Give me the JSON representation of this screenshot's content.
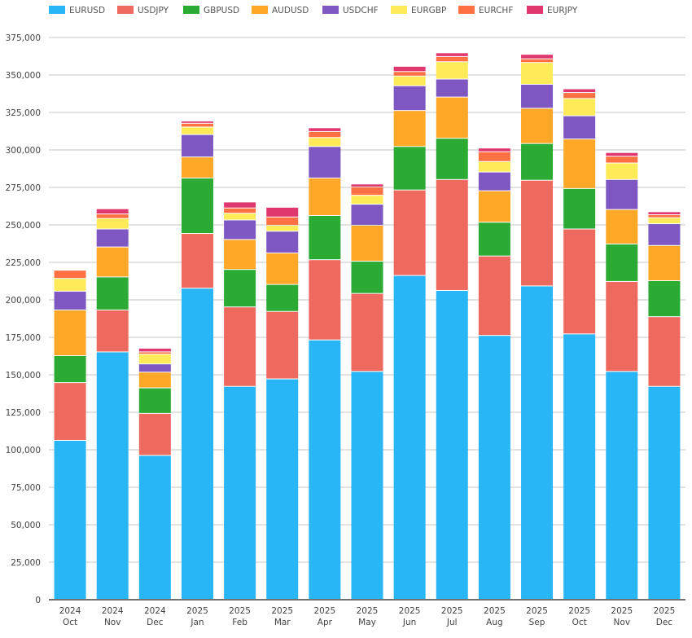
{
  "chart_data": {
    "type": "bar",
    "stacked": true,
    "title": "",
    "xlabel": "",
    "ylabel": "",
    "ylim": [
      0,
      375000
    ],
    "yticks": [
      0,
      25000,
      50000,
      75000,
      100000,
      125000,
      150000,
      175000,
      200000,
      225000,
      250000,
      275000,
      300000,
      325000,
      350000,
      375000
    ],
    "ytick_labels": [
      "0",
      "25,000",
      "50,000",
      "75,000",
      "100,000",
      "125,000",
      "150,000",
      "175,000",
      "200,000",
      "225,000",
      "250,000",
      "275,000",
      "300,000",
      "325,000",
      "350,000",
      "375,000"
    ],
    "grid": true,
    "legend_position": "top-left",
    "categories": [
      {
        "year": "2024",
        "month": "Oct"
      },
      {
        "year": "2024",
        "month": "Nov"
      },
      {
        "year": "2024",
        "month": "Dec"
      },
      {
        "year": "2025",
        "month": "Jan"
      },
      {
        "year": "2025",
        "month": "Feb"
      },
      {
        "year": "2025",
        "month": "Mar"
      },
      {
        "year": "2025",
        "month": "Apr"
      },
      {
        "year": "2025",
        "month": "May"
      },
      {
        "year": "2025",
        "month": "Jun"
      },
      {
        "year": "2025",
        "month": "Jul"
      },
      {
        "year": "2025",
        "month": "Aug"
      },
      {
        "year": "2025",
        "month": "Sep"
      },
      {
        "year": "2025",
        "month": "Oct"
      },
      {
        "year": "2025",
        "month": "Nov"
      },
      {
        "year": "2025",
        "month": "Dec"
      }
    ],
    "series": [
      {
        "name": "EURUSD",
        "color": "#29b6f6",
        "values": [
          106000,
          165000,
          96000,
          207500,
          142000,
          147000,
          173000,
          152000,
          216000,
          206000,
          176000,
          209000,
          177000,
          152000,
          142000
        ]
      },
      {
        "name": "USDJPY",
        "color": "#ef6a5e",
        "values": [
          38500,
          28000,
          28000,
          36500,
          53000,
          45000,
          53500,
          52000,
          57000,
          74000,
          53000,
          70500,
          70000,
          60000,
          46500
        ]
      },
      {
        "name": "GBPUSD",
        "color": "#2bab34",
        "values": [
          18000,
          22000,
          17000,
          37000,
          25000,
          18000,
          29500,
          21500,
          29000,
          27500,
          22500,
          24500,
          27000,
          25000,
          24000
        ]
      },
      {
        "name": "AUDUSD",
        "color": "#ffa726",
        "values": [
          30500,
          20000,
          10500,
          14000,
          20000,
          21000,
          25000,
          24000,
          24000,
          27500,
          21000,
          23500,
          33000,
          23000,
          23500
        ]
      },
      {
        "name": "USDCHF",
        "color": "#7e57c2",
        "values": [
          12500,
          12000,
          5500,
          15000,
          13000,
          14500,
          21000,
          14000,
          16500,
          12000,
          12500,
          16000,
          15500,
          20000,
          14500
        ]
      },
      {
        "name": "EURGBP",
        "color": "#ffeb57",
        "values": [
          8500,
          7000,
          6500,
          5000,
          4500,
          4000,
          6000,
          6000,
          6500,
          11500,
          7000,
          14500,
          11500,
          11000,
          4000
        ]
      },
      {
        "name": "EURCHF",
        "color": "#ff7043",
        "values": [
          5500,
          3000,
          1500,
          2500,
          3500,
          5500,
          4000,
          5500,
          3000,
          3500,
          6500,
          2500,
          4000,
          4500,
          2000
        ]
      },
      {
        "name": "EURJPY",
        "color": "#e0386e",
        "values": [
          0,
          3500,
          2500,
          1500,
          4000,
          6500,
          2500,
          2000,
          3500,
          2500,
          2500,
          3000,
          2500,
          2500,
          2000
        ]
      }
    ]
  }
}
